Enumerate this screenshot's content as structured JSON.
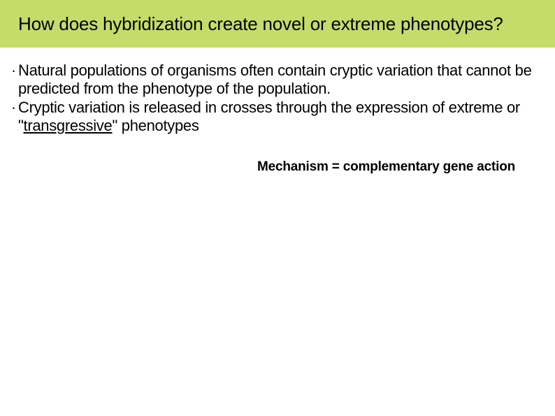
{
  "header": {
    "title": "How does hybridization create novel or extreme phenotypes?",
    "background_color": "#c5dc6a",
    "title_color": "#000000",
    "title_fontsize": 26
  },
  "bullets": [
    {
      "pre": "Natural populations of organisms often contain cryptic variation that cannot be predicted from the phenotype of the population."
    },
    {
      "pre": "Cryptic variation is released in crosses through the expression of extreme or \"",
      "underlined": "transgressive",
      "post": "\" phenotypes"
    }
  ],
  "mechanism_line": "Mechanism = complementary gene action",
  "body": {
    "font_color": "#000000",
    "bullet_fontsize": 22,
    "mechanism_fontsize": 19,
    "mechanism_fontweight": 700,
    "background_color": "#ffffff"
  }
}
